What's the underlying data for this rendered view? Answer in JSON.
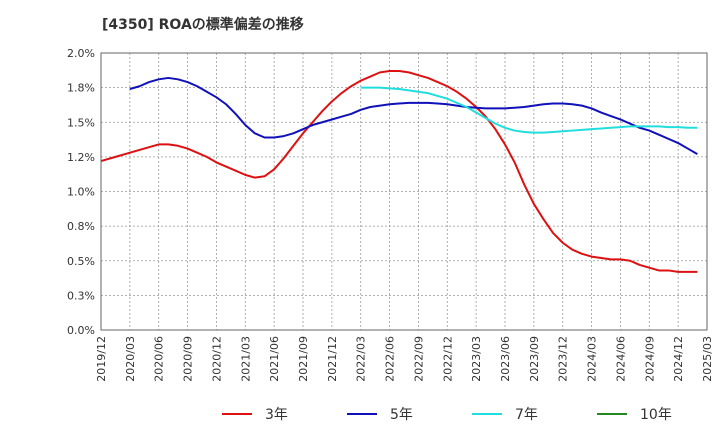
{
  "chart_data": {
    "type": "line",
    "title": "[4350]  ROAの標準偏差の推移",
    "xlabel": "",
    "ylabel": "",
    "ylim": [
      0.0,
      2.0
    ],
    "y_ticks": [
      "0.0%",
      "0.3%",
      "0.5%",
      "0.8%",
      "1.0%",
      "1.2%",
      "1.5%",
      "1.8%",
      "2.0%"
    ],
    "y_tick_values": [
      0.0,
      0.25,
      0.5,
      0.75,
      1.0,
      1.25,
      1.5,
      1.75,
      2.0
    ],
    "x_ticks": [
      "2019/12",
      "2020/03",
      "2020/06",
      "2020/09",
      "2020/12",
      "2021/03",
      "2021/06",
      "2021/09",
      "2021/12",
      "2022/03",
      "2022/06",
      "2022/09",
      "2022/12",
      "2023/03",
      "2023/06",
      "2023/09",
      "2023/12",
      "2024/03",
      "2024/06",
      "2024/09",
      "2024/12",
      "2025/03"
    ],
    "grid": true,
    "legend_position": "bottom",
    "series": [
      {
        "name": "3年",
        "color": "#dd1111",
        "points": [
          [
            "2019/12",
            1.22
          ],
          [
            "2020/01",
            1.24
          ],
          [
            "2020/02",
            1.26
          ],
          [
            "2020/03",
            1.28
          ],
          [
            "2020/04",
            1.3
          ],
          [
            "2020/05",
            1.32
          ],
          [
            "2020/06",
            1.34
          ],
          [
            "2020/07",
            1.34
          ],
          [
            "2020/08",
            1.33
          ],
          [
            "2020/09",
            1.31
          ],
          [
            "2020/10",
            1.28
          ],
          [
            "2020/11",
            1.25
          ],
          [
            "2020/12",
            1.21
          ],
          [
            "2021/01",
            1.18
          ],
          [
            "2021/02",
            1.15
          ],
          [
            "2021/03",
            1.12
          ],
          [
            "2021/04",
            1.1
          ],
          [
            "2021/05",
            1.11
          ],
          [
            "2021/06",
            1.16
          ],
          [
            "2021/07",
            1.24
          ],
          [
            "2021/08",
            1.33
          ],
          [
            "2021/09",
            1.42
          ],
          [
            "2021/10",
            1.5
          ],
          [
            "2021/11",
            1.58
          ],
          [
            "2021/12",
            1.65
          ],
          [
            "2022/01",
            1.71
          ],
          [
            "2022/02",
            1.76
          ],
          [
            "2022/03",
            1.8
          ],
          [
            "2022/04",
            1.83
          ],
          [
            "2022/05",
            1.86
          ],
          [
            "2022/06",
            1.87
          ],
          [
            "2022/07",
            1.87
          ],
          [
            "2022/08",
            1.86
          ],
          [
            "2022/09",
            1.84
          ],
          [
            "2022/10",
            1.82
          ],
          [
            "2022/11",
            1.79
          ],
          [
            "2022/12",
            1.76
          ],
          [
            "2023/01",
            1.72
          ],
          [
            "2023/02",
            1.67
          ],
          [
            "2023/03",
            1.61
          ],
          [
            "2023/04",
            1.54
          ],
          [
            "2023/05",
            1.45
          ],
          [
            "2023/06",
            1.34
          ],
          [
            "2023/07",
            1.21
          ],
          [
            "2023/08",
            1.05
          ],
          [
            "2023/09",
            0.91
          ],
          [
            "2023/10",
            0.8
          ],
          [
            "2023/11",
            0.7
          ],
          [
            "2023/12",
            0.63
          ],
          [
            "2024/01",
            0.58
          ],
          [
            "2024/02",
            0.55
          ],
          [
            "2024/03",
            0.53
          ],
          [
            "2024/04",
            0.52
          ],
          [
            "2024/05",
            0.51
          ],
          [
            "2024/06",
            0.51
          ],
          [
            "2024/07",
            0.5
          ],
          [
            "2024/08",
            0.47
          ],
          [
            "2024/09",
            0.45
          ],
          [
            "2024/10",
            0.43
          ],
          [
            "2024/11",
            0.43
          ],
          [
            "2024/12",
            0.42
          ],
          [
            "2025/01",
            0.42
          ],
          [
            "2025/02",
            0.42
          ]
        ]
      },
      {
        "name": "5年",
        "color": "#1111bb",
        "points": [
          [
            "2020/03",
            1.74
          ],
          [
            "2020/04",
            1.76
          ],
          [
            "2020/05",
            1.79
          ],
          [
            "2020/06",
            1.81
          ],
          [
            "2020/07",
            1.82
          ],
          [
            "2020/08",
            1.81
          ],
          [
            "2020/09",
            1.79
          ],
          [
            "2020/10",
            1.76
          ],
          [
            "2020/11",
            1.72
          ],
          [
            "2020/12",
            1.68
          ],
          [
            "2021/01",
            1.63
          ],
          [
            "2021/02",
            1.56
          ],
          [
            "2021/03",
            1.48
          ],
          [
            "2021/04",
            1.42
          ],
          [
            "2021/05",
            1.39
          ],
          [
            "2021/06",
            1.39
          ],
          [
            "2021/07",
            1.4
          ],
          [
            "2021/08",
            1.42
          ],
          [
            "2021/09",
            1.45
          ],
          [
            "2021/10",
            1.48
          ],
          [
            "2021/11",
            1.5
          ],
          [
            "2021/12",
            1.52
          ],
          [
            "2022/01",
            1.54
          ],
          [
            "2022/02",
            1.56
          ],
          [
            "2022/03",
            1.59
          ],
          [
            "2022/04",
            1.61
          ],
          [
            "2022/05",
            1.62
          ],
          [
            "2022/06",
            1.63
          ],
          [
            "2022/07",
            1.635
          ],
          [
            "2022/08",
            1.64
          ],
          [
            "2022/09",
            1.64
          ],
          [
            "2022/10",
            1.64
          ],
          [
            "2022/11",
            1.635
          ],
          [
            "2022/12",
            1.63
          ],
          [
            "2023/01",
            1.62
          ],
          [
            "2023/02",
            1.61
          ],
          [
            "2023/03",
            1.605
          ],
          [
            "2023/04",
            1.6
          ],
          [
            "2023/05",
            1.6
          ],
          [
            "2023/06",
            1.6
          ],
          [
            "2023/07",
            1.605
          ],
          [
            "2023/08",
            1.61
          ],
          [
            "2023/09",
            1.62
          ],
          [
            "2023/10",
            1.63
          ],
          [
            "2023/11",
            1.635
          ],
          [
            "2023/12",
            1.635
          ],
          [
            "2024/01",
            1.63
          ],
          [
            "2024/02",
            1.62
          ],
          [
            "2024/03",
            1.6
          ],
          [
            "2024/04",
            1.57
          ],
          [
            "2024/05",
            1.545
          ],
          [
            "2024/06",
            1.52
          ],
          [
            "2024/07",
            1.49
          ],
          [
            "2024/08",
            1.46
          ],
          [
            "2024/09",
            1.44
          ],
          [
            "2024/10",
            1.41
          ],
          [
            "2024/11",
            1.38
          ],
          [
            "2024/12",
            1.35
          ],
          [
            "2025/01",
            1.31
          ],
          [
            "2025/02",
            1.27
          ]
        ]
      },
      {
        "name": "7年",
        "color": "#22dddd",
        "points": [
          [
            "2022/03",
            1.75
          ],
          [
            "2022/04",
            1.75
          ],
          [
            "2022/05",
            1.75
          ],
          [
            "2022/06",
            1.745
          ],
          [
            "2022/07",
            1.74
          ],
          [
            "2022/08",
            1.73
          ],
          [
            "2022/09",
            1.72
          ],
          [
            "2022/10",
            1.71
          ],
          [
            "2022/11",
            1.69
          ],
          [
            "2022/12",
            1.67
          ],
          [
            "2023/01",
            1.64
          ],
          [
            "2023/02",
            1.61
          ],
          [
            "2023/03",
            1.57
          ],
          [
            "2023/04",
            1.53
          ],
          [
            "2023/05",
            1.49
          ],
          [
            "2023/06",
            1.46
          ],
          [
            "2023/07",
            1.44
          ],
          [
            "2023/08",
            1.43
          ],
          [
            "2023/09",
            1.425
          ],
          [
            "2023/10",
            1.425
          ],
          [
            "2023/11",
            1.43
          ],
          [
            "2023/12",
            1.435
          ],
          [
            "2024/01",
            1.44
          ],
          [
            "2024/02",
            1.445
          ],
          [
            "2024/03",
            1.45
          ],
          [
            "2024/04",
            1.455
          ],
          [
            "2024/05",
            1.46
          ],
          [
            "2024/06",
            1.465
          ],
          [
            "2024/07",
            1.47
          ],
          [
            "2024/08",
            1.47
          ],
          [
            "2024/09",
            1.47
          ],
          [
            "2024/10",
            1.47
          ],
          [
            "2024/11",
            1.465
          ],
          [
            "2024/12",
            1.465
          ],
          [
            "2025/01",
            1.46
          ],
          [
            "2025/02",
            1.46
          ]
        ]
      },
      {
        "name": "10年",
        "color": "#228822",
        "points": []
      }
    ]
  }
}
